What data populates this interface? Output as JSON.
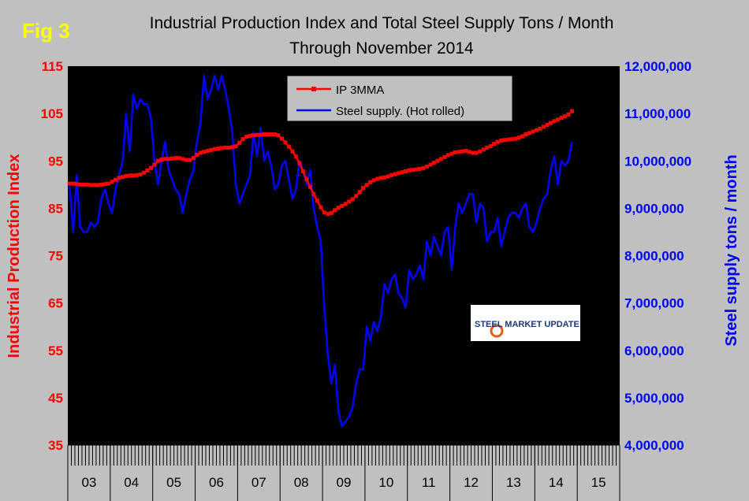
{
  "figure_label": "Fig 3",
  "logo": {
    "text": "STEEL MARKET UPDATE"
  },
  "chart_data": {
    "type": "line",
    "title": "Industrial Production Index and Total Steel Supply Tons / Month",
    "subtitle": "Through November 2014",
    "ylabel": "Industrial Production Index",
    "y2label": "Steel supply tons / month",
    "ylim": [
      35,
      115
    ],
    "y_ticks": [
      "35",
      "45",
      "55",
      "65",
      "75",
      "85",
      "95",
      "105",
      "115"
    ],
    "y2lim": [
      4000000,
      12000000
    ],
    "y2_ticks": [
      "4,000,000",
      "5,000,000",
      "6,000,000",
      "7,000,000",
      "8,000,000",
      "9,000,000",
      "10,000,000",
      "11,000,000",
      "12,000,000"
    ],
    "x_categories": [
      "03",
      "04",
      "05",
      "06",
      "07",
      "08",
      "09",
      "10",
      "11",
      "12",
      "13",
      "14",
      "15"
    ],
    "grid": false,
    "legend_position": "top-center",
    "plot_background": "#000000",
    "series": [
      {
        "name": "IP 3MMA",
        "axis": "left",
        "color": "#ff0000",
        "values": [
          90.2,
          90.2,
          90.1,
          90.0,
          90.0,
          90.0,
          89.9,
          89.9,
          89.9,
          90.0,
          90.1,
          90.2,
          90.6,
          91.0,
          91.4,
          91.6,
          91.8,
          91.9,
          91.9,
          92.0,
          92.1,
          92.5,
          93.0,
          93.5,
          94.2,
          95.0,
          95.3,
          95.4,
          95.4,
          95.5,
          95.6,
          95.6,
          95.4,
          95.2,
          95.2,
          95.6,
          96.3,
          96.7,
          96.9,
          97.1,
          97.3,
          97.5,
          97.6,
          97.7,
          97.8,
          97.8,
          97.9,
          98.1,
          98.8,
          99.6,
          100.1,
          100.3,
          100.4,
          100.5,
          100.5,
          100.6,
          100.6,
          100.6,
          100.6,
          100.4,
          99.7,
          98.9,
          98.0,
          97.0,
          95.9,
          94.5,
          92.8,
          91.1,
          89.5,
          88.0,
          86.6,
          85.2,
          84.1,
          83.8,
          84.0,
          84.6,
          85.1,
          85.5,
          85.9,
          86.4,
          86.9,
          87.6,
          88.4,
          89.3,
          89.9,
          90.5,
          90.9,
          91.2,
          91.4,
          91.5,
          91.7,
          92.0,
          92.2,
          92.4,
          92.6,
          92.8,
          93.0,
          93.1,
          93.2,
          93.3,
          93.5,
          93.8,
          94.2,
          94.6,
          95.0,
          95.4,
          95.8,
          96.2,
          96.5,
          96.8,
          96.9,
          97.0,
          97.1,
          96.9,
          96.7,
          96.7,
          97.0,
          97.4,
          97.8,
          98.1,
          98.6,
          99.0,
          99.3,
          99.4,
          99.5,
          99.6,
          99.7,
          99.9,
          100.2,
          100.6,
          100.9,
          101.2,
          101.5,
          101.8,
          102.2,
          102.6,
          103.0,
          103.4,
          103.7,
          104.1,
          104.4,
          104.8,
          105.5
        ],
        "x_start": "2003-01",
        "x_end": "2014-11"
      },
      {
        "name": "Steel supply. (Hot rolled)",
        "axis": "right",
        "color": "#0000ff",
        "values": [
          9500000,
          8500000,
          9700000,
          8600000,
          8500000,
          8500000,
          8700000,
          8600000,
          8700000,
          9200000,
          9400000,
          9100000,
          8900000,
          9400000,
          9700000,
          10000000,
          11000000,
          10200000,
          11400000,
          11100000,
          11300000,
          11200000,
          11200000,
          10900000,
          10000000,
          9500000,
          10000000,
          10400000,
          9800000,
          9600000,
          9400000,
          9300000,
          8900000,
          9300000,
          9600000,
          9800000,
          10400000,
          10800000,
          11800000,
          11300000,
          11500000,
          11800000,
          11500000,
          11800000,
          11500000,
          11100000,
          10600000,
          9500000,
          9100000,
          9300000,
          9500000,
          9700000,
          10600000,
          10100000,
          10700000,
          10000000,
          10200000,
          9900000,
          9400000,
          9500000,
          9900000,
          10000000,
          9600000,
          9200000,
          9400000,
          10000000,
          9800000,
          9500000,
          9800000,
          9000000,
          8600000,
          8300000,
          6900000,
          5900000,
          5300000,
          5700000,
          4700000,
          4400000,
          4500000,
          4600000,
          4800000,
          5300000,
          5600000,
          5600000,
          6500000,
          6200000,
          6600000,
          6400000,
          6700000,
          7400000,
          7200000,
          7500000,
          7600000,
          7200000,
          7100000,
          6900000,
          7700000,
          7500000,
          7600000,
          7800000,
          7500000,
          8300000,
          8000000,
          8400000,
          8200000,
          8000000,
          8500000,
          8600000,
          7700000,
          8600000,
          9100000,
          8900000,
          9100000,
          9300000,
          9300000,
          8700000,
          9100000,
          9000000,
          8300000,
          8500000,
          8500000,
          8800000,
          8200000,
          8500000,
          8800000,
          8900000,
          8900000,
          8800000,
          9000000,
          9100000,
          8600000,
          8500000,
          8700000,
          9000000,
          9200000,
          9300000,
          9800000,
          10100000,
          9500000,
          10000000,
          9900000,
          10000000,
          10400000
        ],
        "x_start": "2003-01",
        "x_end": "2014-11"
      }
    ]
  }
}
